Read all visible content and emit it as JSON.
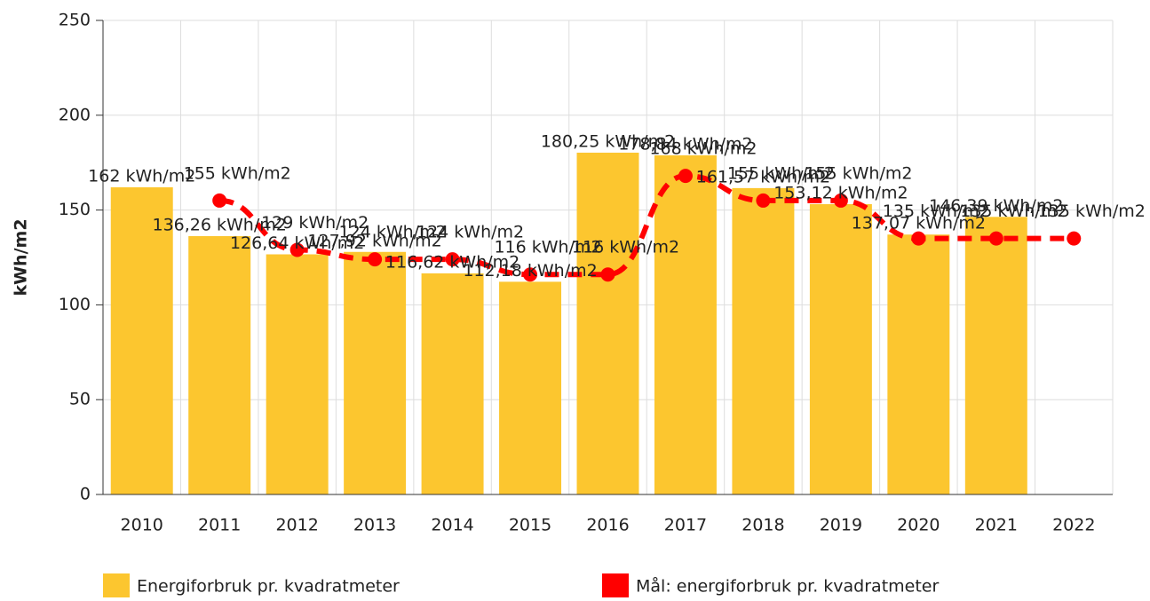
{
  "chart_data": {
    "type": "bar",
    "ylabel": "kWh/m2",
    "categories": [
      "2010",
      "2011",
      "2012",
      "2013",
      "2014",
      "2015",
      "2016",
      "2017",
      "2018",
      "2019",
      "2020",
      "2021",
      "2022"
    ],
    "series": [
      {
        "name": "Energiforbruk pr. kvadratmeter",
        "type": "bar",
        "color": "#fcc62f",
        "values": [
          162,
          136.26,
          126.64,
          127.92,
          116.62,
          112.18,
          180.25,
          178.84,
          161.57,
          153.12,
          137.07,
          146.39,
          null
        ],
        "value_labels": [
          "162 kWh/m2",
          "136,26 kWh/m2",
          "126,64 kWh/m2",
          "127,92 kWh/m2",
          "116,62 kWh/m2",
          "112,18 kWh/m2",
          "180,25 kWh/m2",
          "178,84 kWh/m2",
          "161,57 kWh/m2",
          "153,12 kWh/m2",
          "137,07 kWh/m2",
          "146,39 kWh/m2",
          null
        ]
      },
      {
        "name": "Mål: energiforbruk pr. kvadratmeter",
        "type": "line",
        "color": "#ff0000",
        "values": [
          null,
          155,
          129,
          124,
          124,
          116,
          116,
          168,
          155,
          155,
          135,
          135,
          135
        ],
        "value_labels": [
          null,
          "155 kWh/m2",
          "129 kWh/m2",
          "124 kWh/m2",
          "124 kWh/m2",
          "116 kWh/m2",
          "116 kWh/m2",
          "168 kWh/m2",
          "155 kWh/m2",
          "155 kWh/m2",
          "135 kWh/m2",
          "135 kWh/m2",
          "135 kWh/m2"
        ]
      }
    ],
    "ylim": [
      0,
      250
    ],
    "yticks": [
      0,
      50,
      100,
      150,
      200,
      250
    ],
    "grid": true
  }
}
